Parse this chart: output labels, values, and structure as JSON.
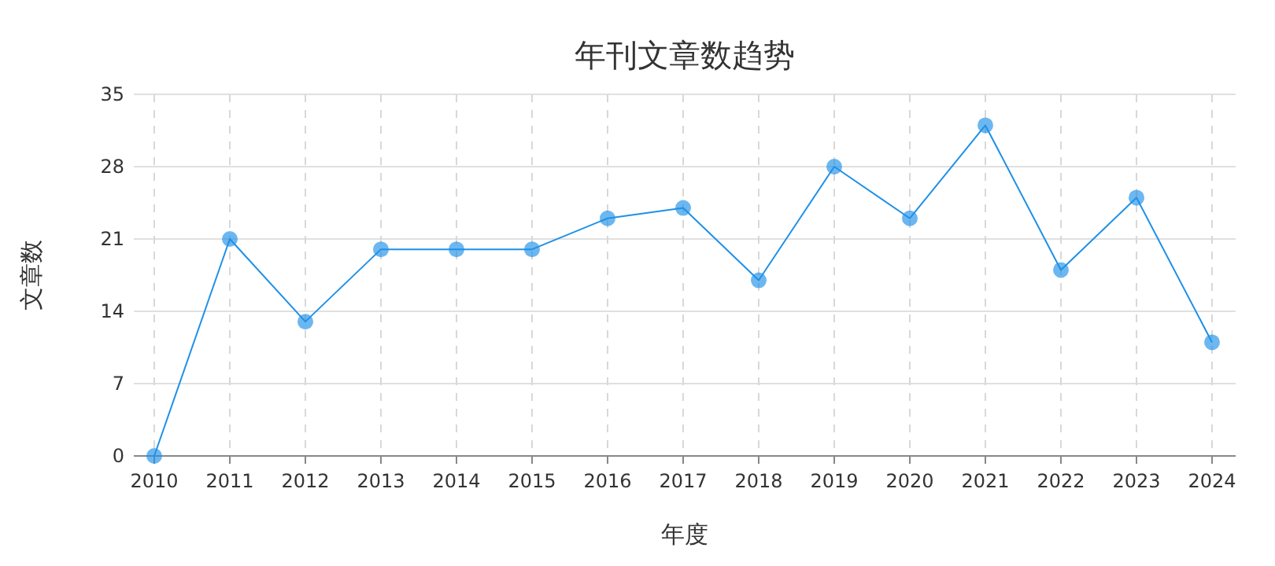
{
  "chart_data": {
    "type": "line",
    "title": "年刊文章数趋势",
    "xlabel": "年度",
    "ylabel": "文章数",
    "categories": [
      "2010",
      "2011",
      "2012",
      "2013",
      "2014",
      "2015",
      "2016",
      "2017",
      "2018",
      "2019",
      "2020",
      "2021",
      "2022",
      "2023",
      "2024"
    ],
    "series": [
      {
        "color": "#1e90e8",
        "values": [
          0,
          21,
          13,
          20,
          20,
          20,
          23,
          24,
          17,
          28,
          23,
          32,
          18,
          25,
          11
        ]
      }
    ],
    "ylim": [
      0,
      35
    ],
    "yticks": [
      0,
      7,
      14,
      21,
      28,
      35
    ],
    "grid": true,
    "marker": "circle",
    "line_style": "solid"
  }
}
